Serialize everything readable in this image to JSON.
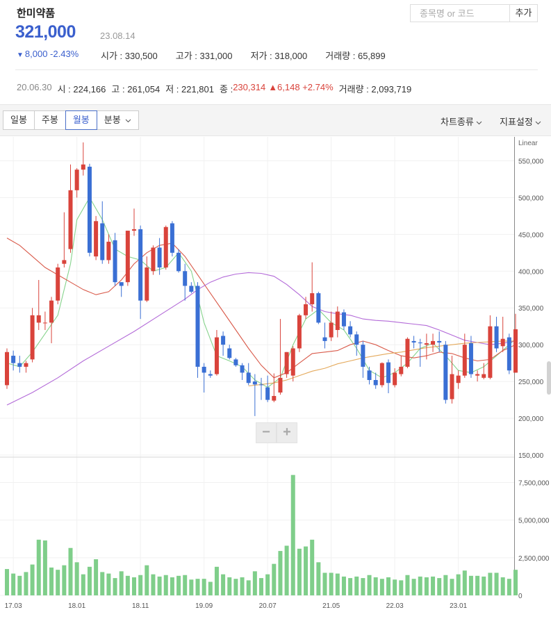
{
  "stock": {
    "name": "한미약품",
    "price": "321,000",
    "date": "23.08.14",
    "change_arrow": "▼",
    "change": "8,000 -2.43%",
    "open": "시가 : 330,500",
    "high": "고가 : 331,000",
    "low": "저가 : 318,000",
    "volume": "거래량 : 65,899"
  },
  "search": {
    "placeholder": "종목명 or 코드",
    "add_label": "추가"
  },
  "hover": {
    "date": "20.06.30",
    "open": "시 : 224,166",
    "high": "고 : 261,054",
    "low": "저 : 221,801",
    "close_label": "종 : ",
    "close": "230,314",
    "change": "▲6,148 +2.74%",
    "volume": "거래량 : 2,093,719"
  },
  "toolbar": {
    "periods": [
      "일봉",
      "주봉",
      "월봉",
      "분봉"
    ],
    "active_period": "월봉",
    "chart_type": "차트종류",
    "indicator": "지표설정"
  },
  "zoom": {
    "minus": "−",
    "plus": "+"
  },
  "colors": {
    "up": "#d9433b",
    "down": "#3a6fd4",
    "volume": "#7fce8a",
    "ma5": "#86d38c",
    "ma20": "#d95a4a",
    "ma60": "#b36ad8",
    "ma120": "#e4a95b"
  },
  "chart_data": {
    "type": "candlestick",
    "scale_label": "Linear",
    "price_ticks": [
      "550,000",
      "500,000",
      "450,000",
      "400,000",
      "350,000",
      "300,000",
      "250,000",
      "200,000",
      "150,000"
    ],
    "price_tick_values": [
      550000,
      500000,
      450000,
      400000,
      350000,
      300000,
      250000,
      200000,
      150000
    ],
    "price_ylim": [
      150000,
      575000
    ],
    "volume_ticks": [
      "7,500,000",
      "5,000,000",
      "2,500,000",
      "0"
    ],
    "volume_tick_values": [
      7500000,
      5000000,
      2500000,
      0
    ],
    "volume_ylim": [
      0,
      9000000
    ],
    "x_tick_labels": [
      "17.03",
      "18.01",
      "18.11",
      "19.09",
      "20.07",
      "21.05",
      "22.03",
      "23.01"
    ],
    "x_tick_index": [
      1,
      11,
      21,
      31,
      41,
      51,
      61,
      71
    ],
    "candles": [
      {
        "o": 245000,
        "h": 295000,
        "l": 240000,
        "c": 290000
      },
      {
        "o": 285000,
        "h": 292000,
        "l": 265000,
        "c": 275000
      },
      {
        "o": 275000,
        "h": 285000,
        "l": 262000,
        "c": 270000
      },
      {
        "o": 270000,
        "h": 278000,
        "l": 262000,
        "c": 275000
      },
      {
        "o": 280000,
        "h": 350000,
        "l": 276000,
        "c": 340000
      },
      {
        "o": 330000,
        "h": 388000,
        "l": 320000,
        "c": 340000
      },
      {
        "o": 330000,
        "h": 345000,
        "l": 320000,
        "c": 330000
      },
      {
        "o": 330000,
        "h": 365000,
        "l": 302000,
        "c": 360000
      },
      {
        "o": 360000,
        "h": 410000,
        "l": 355000,
        "c": 405000
      },
      {
        "o": 410000,
        "h": 480000,
        "l": 405000,
        "c": 415000
      },
      {
        "o": 430000,
        "h": 545000,
        "l": 425000,
        "c": 510000
      },
      {
        "o": 510000,
        "h": 540000,
        "l": 500000,
        "c": 538000
      },
      {
        "o": 538000,
        "h": 575000,
        "l": 530000,
        "c": 545000
      },
      {
        "o": 542000,
        "h": 546000,
        "l": 420000,
        "c": 425000
      },
      {
        "o": 420000,
        "h": 475000,
        "l": 415000,
        "c": 468000
      },
      {
        "o": 465000,
        "h": 495000,
        "l": 410000,
        "c": 415000
      },
      {
        "o": 415000,
        "h": 450000,
        "l": 410000,
        "c": 440000
      },
      {
        "o": 442000,
        "h": 452000,
        "l": 380000,
        "c": 385000
      },
      {
        "o": 385000,
        "h": 385000,
        "l": 365000,
        "c": 380000
      },
      {
        "o": 385000,
        "h": 455000,
        "l": 380000,
        "c": 455000
      },
      {
        "o": 455000,
        "h": 485000,
        "l": 448000,
        "c": 457000
      },
      {
        "o": 457000,
        "h": 462000,
        "l": 335000,
        "c": 360000
      },
      {
        "o": 360000,
        "h": 420000,
        "l": 358000,
        "c": 405000
      },
      {
        "o": 400000,
        "h": 435000,
        "l": 395000,
        "c": 432000
      },
      {
        "o": 432000,
        "h": 445000,
        "l": 395000,
        "c": 405000
      },
      {
        "o": 405000,
        "h": 462000,
        "l": 402000,
        "c": 460000
      },
      {
        "o": 465000,
        "h": 468000,
        "l": 420000,
        "c": 425000
      },
      {
        "o": 425000,
        "h": 430000,
        "l": 398000,
        "c": 400000
      },
      {
        "o": 400000,
        "h": 410000,
        "l": 360000,
        "c": 380000
      },
      {
        "o": 380000,
        "h": 385000,
        "l": 370000,
        "c": 372000
      },
      {
        "o": 380000,
        "h": 385000,
        "l": 255000,
        "c": 270000
      },
      {
        "o": 270000,
        "h": 275000,
        "l": 235000,
        "c": 262000
      },
      {
        "o": 260000,
        "h": 265000,
        "l": 255000,
        "c": 258000
      },
      {
        "o": 260000,
        "h": 320000,
        "l": 258000,
        "c": 310000
      },
      {
        "o": 312000,
        "h": 318000,
        "l": 285000,
        "c": 300000
      },
      {
        "o": 295000,
        "h": 300000,
        "l": 280000,
        "c": 282000
      },
      {
        "o": 280000,
        "h": 282000,
        "l": 270000,
        "c": 272000
      },
      {
        "o": 272000,
        "h": 275000,
        "l": 252000,
        "c": 262000
      },
      {
        "o": 262000,
        "h": 275000,
        "l": 245000,
        "c": 248000
      },
      {
        "o": 250000,
        "h": 260000,
        "l": 203000,
        "c": 246000
      },
      {
        "o": 246000,
        "h": 255000,
        "l": 225000,
        "c": 245000
      },
      {
        "o": 242000,
        "h": 258000,
        "l": 222000,
        "c": 225000
      },
      {
        "o": 224000,
        "h": 261000,
        "l": 221800,
        "c": 230314
      },
      {
        "o": 235000,
        "h": 335000,
        "l": 232000,
        "c": 255000
      },
      {
        "o": 260000,
        "h": 290000,
        "l": 255000,
        "c": 290000
      },
      {
        "o": 258000,
        "h": 298000,
        "l": 250000,
        "c": 295000
      },
      {
        "o": 295000,
        "h": 342000,
        "l": 290000,
        "c": 340000
      },
      {
        "o": 340000,
        "h": 365000,
        "l": 335000,
        "c": 355000
      },
      {
        "o": 355000,
        "h": 412000,
        "l": 345000,
        "c": 370000
      },
      {
        "o": 370000,
        "h": 372000,
        "l": 328000,
        "c": 330000
      },
      {
        "o": 310000,
        "h": 330000,
        "l": 295000,
        "c": 305000
      },
      {
        "o": 310000,
        "h": 345000,
        "l": 305000,
        "c": 330000
      },
      {
        "o": 320000,
        "h": 352000,
        "l": 310000,
        "c": 345000
      },
      {
        "o": 344000,
        "h": 348000,
        "l": 320000,
        "c": 325000
      },
      {
        "o": 325000,
        "h": 332000,
        "l": 310000,
        "c": 314000
      },
      {
        "o": 314000,
        "h": 318000,
        "l": 285000,
        "c": 300000
      },
      {
        "o": 300000,
        "h": 305000,
        "l": 255000,
        "c": 270000
      },
      {
        "o": 265000,
        "h": 270000,
        "l": 246000,
        "c": 252000
      },
      {
        "o": 252000,
        "h": 262000,
        "l": 240000,
        "c": 245000
      },
      {
        "o": 245000,
        "h": 276000,
        "l": 242000,
        "c": 275000
      },
      {
        "o": 276000,
        "h": 280000,
        "l": 234000,
        "c": 248000
      },
      {
        "o": 245000,
        "h": 268000,
        "l": 242000,
        "c": 262000
      },
      {
        "o": 260000,
        "h": 285000,
        "l": 257000,
        "c": 270000
      },
      {
        "o": 270000,
        "h": 310000,
        "l": 268000,
        "c": 308000
      },
      {
        "o": 305000,
        "h": 312000,
        "l": 295000,
        "c": 303000
      },
      {
        "o": 303000,
        "h": 308000,
        "l": 270000,
        "c": 302000
      },
      {
        "o": 300000,
        "h": 315000,
        "l": 280000,
        "c": 302000
      },
      {
        "o": 300000,
        "h": 315000,
        "l": 290000,
        "c": 305000
      },
      {
        "o": 305000,
        "h": 318000,
        "l": 290000,
        "c": 303000
      },
      {
        "o": 300000,
        "h": 305000,
        "l": 220000,
        "c": 225000
      },
      {
        "o": 226000,
        "h": 285000,
        "l": 220000,
        "c": 260000
      },
      {
        "o": 248000,
        "h": 265000,
        "l": 240000,
        "c": 258000
      },
      {
        "o": 258000,
        "h": 315000,
        "l": 255000,
        "c": 300000
      },
      {
        "o": 302000,
        "h": 312000,
        "l": 255000,
        "c": 260000
      },
      {
        "o": 258000,
        "h": 265000,
        "l": 250000,
        "c": 260000
      },
      {
        "o": 255000,
        "h": 275000,
        "l": 253000,
        "c": 260000
      },
      {
        "o": 255000,
        "h": 340000,
        "l": 253000,
        "c": 325000
      },
      {
        "o": 325000,
        "h": 338000,
        "l": 290000,
        "c": 295000
      },
      {
        "o": 298000,
        "h": 338000,
        "l": 290000,
        "c": 308000
      },
      {
        "o": 310000,
        "h": 315000,
        "l": 260000,
        "c": 265000
      },
      {
        "o": 262000,
        "h": 342000,
        "l": 262000,
        "c": 321000
      }
    ],
    "volume": [
      1750000,
      1450000,
      1300000,
      1550000,
      2050000,
      3700000,
      3650000,
      1850000,
      1700000,
      2000000,
      3150000,
      2200000,
      1400000,
      1900000,
      2400000,
      1550000,
      1450000,
      1150000,
      1600000,
      1300000,
      1200000,
      1350000,
      2000000,
      1400000,
      1250000,
      1350000,
      1200000,
      1300000,
      1350000,
      1050000,
      1100000,
      1100000,
      900000,
      1900000,
      1400000,
      1200000,
      1100000,
      1200000,
      1000000,
      1600000,
      1150000,
      1400000,
      2093719,
      2950000,
      3300000,
      8000000,
      3100000,
      3250000,
      3700000,
      2200000,
      1500000,
      1500000,
      1450000,
      1250000,
      1150000,
      1250000,
      1150000,
      1350000,
      1200000,
      1100000,
      1200000,
      1050000,
      1000000,
      1350000,
      1100000,
      1250000,
      1200000,
      1250000,
      1150000,
      1350000,
      1100000,
      1400000,
      1650000,
      1300000,
      1300000,
      1250000,
      1500000,
      1500000,
      1200000,
      1100000,
      1700000
    ],
    "ma_lines": [
      {
        "key": "ma5",
        "values": [
          [
            0,
            275000
          ],
          [
            2,
            270000
          ],
          [
            4,
            290000
          ],
          [
            6,
            315000
          ],
          [
            8,
            340000
          ],
          [
            10,
            410000
          ],
          [
            11,
            470000
          ],
          [
            13,
            500000
          ],
          [
            15,
            470000
          ],
          [
            17,
            430000
          ],
          [
            19,
            420000
          ],
          [
            21,
            415000
          ],
          [
            23,
            400000
          ],
          [
            25,
            405000
          ],
          [
            27,
            425000
          ],
          [
            29,
            400000
          ],
          [
            31,
            330000
          ],
          [
            33,
            285000
          ],
          [
            35,
            278000
          ],
          [
            37,
            270000
          ],
          [
            39,
            252000
          ],
          [
            41,
            242000
          ],
          [
            43,
            255000
          ],
          [
            45,
            300000
          ],
          [
            47,
            335000
          ],
          [
            49,
            348000
          ],
          [
            51,
            330000
          ],
          [
            53,
            320000
          ],
          [
            55,
            295000
          ],
          [
            57,
            265000
          ],
          [
            59,
            255000
          ],
          [
            61,
            262000
          ],
          [
            63,
            275000
          ],
          [
            65,
            295000
          ],
          [
            67,
            302000
          ],
          [
            69,
            285000
          ],
          [
            71,
            265000
          ],
          [
            73,
            262000
          ],
          [
            75,
            270000
          ],
          [
            77,
            285000
          ],
          [
            79,
            300000
          ],
          [
            80,
            308000
          ]
        ]
      },
      {
        "key": "ma20",
        "values": [
          [
            0,
            445000
          ],
          [
            2,
            435000
          ],
          [
            4,
            420000
          ],
          [
            6,
            405000
          ],
          [
            8,
            395000
          ],
          [
            10,
            385000
          ],
          [
            12,
            375000
          ],
          [
            14,
            368000
          ],
          [
            16,
            372000
          ],
          [
            18,
            388000
          ],
          [
            20,
            410000
          ],
          [
            22,
            425000
          ],
          [
            24,
            435000
          ],
          [
            26,
            438000
          ],
          [
            28,
            420000
          ],
          [
            30,
            395000
          ],
          [
            32,
            370000
          ],
          [
            34,
            345000
          ],
          [
            36,
            320000
          ],
          [
            38,
            295000
          ],
          [
            40,
            272000
          ],
          [
            42,
            255000
          ],
          [
            44,
            262000
          ],
          [
            46,
            275000
          ],
          [
            48,
            288000
          ],
          [
            50,
            290000
          ],
          [
            52,
            292000
          ],
          [
            54,
            300000
          ],
          [
            56,
            305000
          ],
          [
            58,
            300000
          ],
          [
            60,
            292000
          ],
          [
            62,
            285000
          ],
          [
            64,
            282000
          ],
          [
            66,
            285000
          ],
          [
            68,
            290000
          ],
          [
            70,
            288000
          ],
          [
            72,
            282000
          ],
          [
            74,
            278000
          ],
          [
            76,
            280000
          ],
          [
            78,
            292000
          ],
          [
            80,
            300000
          ]
        ]
      },
      {
        "key": "ma60",
        "values": [
          [
            0,
            218000
          ],
          [
            4,
            235000
          ],
          [
            8,
            255000
          ],
          [
            12,
            278000
          ],
          [
            16,
            298000
          ],
          [
            20,
            318000
          ],
          [
            24,
            340000
          ],
          [
            28,
            362000
          ],
          [
            30,
            375000
          ],
          [
            32,
            385000
          ],
          [
            34,
            392000
          ],
          [
            36,
            396000
          ],
          [
            38,
            398000
          ],
          [
            40,
            397000
          ],
          [
            42,
            393000
          ],
          [
            44,
            382000
          ],
          [
            46,
            368000
          ],
          [
            48,
            352000
          ],
          [
            50,
            345000
          ],
          [
            52,
            342000
          ],
          [
            54,
            340000
          ],
          [
            56,
            335000
          ],
          [
            58,
            333000
          ],
          [
            60,
            332000
          ],
          [
            62,
            330000
          ],
          [
            64,
            328000
          ],
          [
            66,
            326000
          ],
          [
            68,
            320000
          ],
          [
            70,
            313000
          ],
          [
            72,
            306000
          ],
          [
            74,
            303000
          ],
          [
            76,
            300000
          ],
          [
            78,
            302000
          ],
          [
            80,
            305000
          ]
        ]
      },
      {
        "key": "ma120",
        "values": [
          [
            38,
            244000
          ],
          [
            40,
            246000
          ],
          [
            42,
            248000
          ],
          [
            44,
            252000
          ],
          [
            46,
            258000
          ],
          [
            48,
            264000
          ],
          [
            50,
            268000
          ],
          [
            52,
            274000
          ],
          [
            54,
            278000
          ],
          [
            56,
            282000
          ],
          [
            58,
            285000
          ],
          [
            60,
            288000
          ],
          [
            62,
            290000
          ],
          [
            64,
            293000
          ],
          [
            66,
            296000
          ],
          [
            68,
            298000
          ],
          [
            70,
            300000
          ],
          [
            72,
            302000
          ],
          [
            74,
            303000
          ],
          [
            76,
            304000
          ],
          [
            78,
            305000
          ],
          [
            80,
            305000
          ]
        ]
      }
    ]
  }
}
